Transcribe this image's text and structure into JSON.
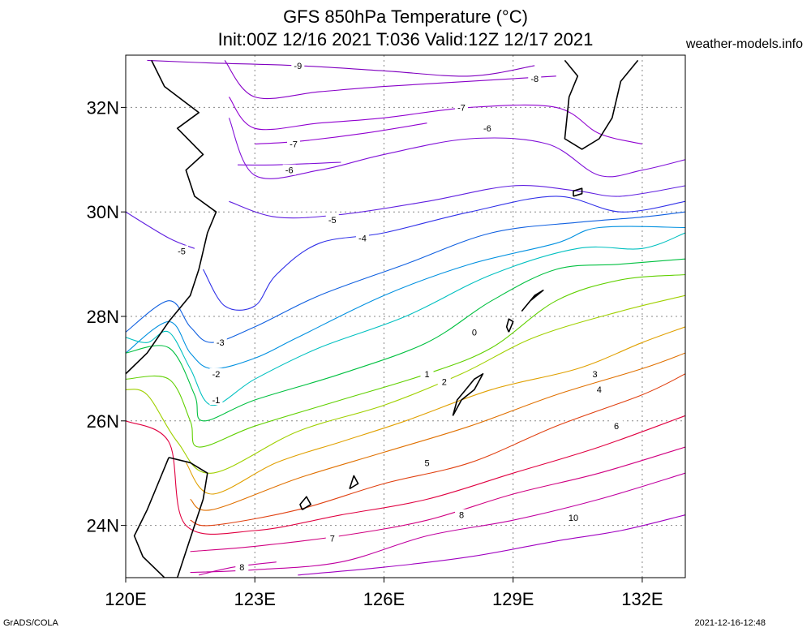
{
  "title_line1": "GFS 850hPa Temperature (°C)",
  "title_line2": "Init:00Z 12/16 2021 T:036 Valid:12Z 12/17 2021",
  "site": "weather-models.info",
  "footer_left": "GrADS/COLA",
  "footer_right": "2021-12-16-12:48",
  "axes": {
    "x_ticks": [
      {
        "lon": 120,
        "label": "120E"
      },
      {
        "lon": 123,
        "label": "123E"
      },
      {
        "lon": 126,
        "label": "126E"
      },
      {
        "lon": 129,
        "label": "129E"
      },
      {
        "lon": 132,
        "label": "132E"
      }
    ],
    "y_ticks": [
      {
        "lat": 24,
        "label": "24N"
      },
      {
        "lat": 26,
        "label": "26N"
      },
      {
        "lat": 28,
        "label": "28N"
      },
      {
        "lat": 30,
        "label": "30N"
      },
      {
        "lat": 32,
        "label": "32N"
      }
    ],
    "lon_range": [
      120,
      133
    ],
    "lat_range": [
      23,
      33
    ],
    "grid": "dotted"
  },
  "contour_colors": {
    "-9": "#8000c0",
    "-8": "#8800c8",
    "-7": "#9000d0",
    "-6": "#8010d8",
    "-5": "#6020e0",
    "-4": "#3030e8",
    "-3": "#1060e0",
    "-2": "#0090e0",
    "-1": "#00c0c0",
    "0": "#00c040",
    "1": "#60d000",
    "2": "#a0d000",
    "3": "#e0a000",
    "4": "#e07000",
    "5": "#e04010",
    "6": "#e00040",
    "7": "#d00080",
    "8": "#c000a0",
    "10": "#a000c0"
  },
  "contours": [
    {
      "level": -9,
      "label": "-9",
      "points": [
        [
          120.5,
          32.9
        ],
        [
          122,
          32.85
        ],
        [
          124,
          32.8
        ],
        [
          126,
          32.7
        ],
        [
          128,
          32.6
        ],
        [
          129.5,
          32.8
        ]
      ],
      "label_at": [
        124,
        32.8
      ]
    },
    {
      "level": -8,
      "label": "-8",
      "points": [
        [
          122.3,
          32.9
        ],
        [
          123,
          32.2
        ],
        [
          124.5,
          32.3
        ],
        [
          126,
          32.4
        ],
        [
          128,
          32.5
        ],
        [
          130,
          32.6
        ]
      ],
      "label_at": [
        129.5,
        32.55
      ]
    },
    {
      "level": -7,
      "label": "-7",
      "points": [
        [
          122.4,
          32.2
        ],
        [
          123,
          31.6
        ],
        [
          124.5,
          31.7
        ],
        [
          126,
          31.8
        ],
        [
          128,
          32.0
        ],
        [
          130,
          32.0
        ],
        [
          131,
          31.5
        ],
        [
          132,
          31.3
        ]
      ],
      "label_at": [
        127.8,
        32.0
      ]
    },
    {
      "level": -7,
      "label": "-7",
      "points": [
        [
          123,
          31.3
        ],
        [
          124,
          31.35
        ],
        [
          125.5,
          31.5
        ],
        [
          127,
          31.7
        ]
      ],
      "label_at": [
        123.9,
        31.3
      ]
    },
    {
      "level": -6,
      "label": "-6",
      "points": [
        [
          122.4,
          31.8
        ],
        [
          123,
          30.7
        ],
        [
          124.5,
          30.8
        ],
        [
          126,
          31.1
        ],
        [
          128,
          31.4
        ],
        [
          129.8,
          31.3
        ],
        [
          131,
          30.7
        ],
        [
          132,
          30.8
        ],
        [
          133,
          31.0
        ]
      ],
      "label_at": [
        128.4,
        31.6
      ]
    },
    {
      "level": -6,
      "label": "-6",
      "points": [
        [
          122.6,
          30.9
        ],
        [
          123.5,
          30.9
        ],
        [
          125,
          30.95
        ]
      ],
      "label_at": [
        123.8,
        30.8
      ]
    },
    {
      "level": -5,
      "label": "-5",
      "points": [
        [
          122.4,
          30.2
        ],
        [
          123.5,
          29.9
        ],
        [
          125,
          29.95
        ],
        [
          127,
          30.2
        ],
        [
          129,
          30.5
        ],
        [
          130.5,
          30.4
        ],
        [
          131.5,
          30.3
        ],
        [
          133,
          30.5
        ]
      ],
      "label_at": [
        124.8,
        29.85
      ]
    },
    {
      "level": -5,
      "label": "-5",
      "points": [
        [
          120,
          30.0
        ],
        [
          121,
          29.5
        ],
        [
          121.6,
          29.3
        ]
      ],
      "label_at": [
        121.3,
        29.25
      ]
    },
    {
      "level": -4,
      "label": "-4",
      "points": [
        [
          121.8,
          28.9
        ],
        [
          122.3,
          28.2
        ],
        [
          123,
          28.2
        ],
        [
          123.5,
          28.8
        ],
        [
          124.5,
          29.4
        ],
        [
          126,
          29.6
        ],
        [
          128,
          30.0
        ],
        [
          130,
          30.3
        ],
        [
          131.5,
          30.0
        ],
        [
          133,
          30.2
        ]
      ],
      "label_at": [
        125.5,
        29.5
      ]
    },
    {
      "level": -3,
      "label": "-3",
      "points": [
        [
          120,
          27.7
        ],
        [
          121,
          28.3
        ],
        [
          121.5,
          27.8
        ],
        [
          122,
          27.5
        ],
        [
          123,
          27.8
        ],
        [
          124.5,
          28.4
        ],
        [
          126.5,
          29.0
        ],
        [
          128.5,
          29.6
        ],
        [
          130.5,
          29.8
        ],
        [
          132,
          29.9
        ],
        [
          133,
          30.0
        ]
      ],
      "label_at": [
        122.2,
        27.5
      ]
    },
    {
      "level": -2,
      "label": "-2",
      "points": [
        [
          120,
          27.3
        ],
        [
          121,
          27.9
        ],
        [
          121.5,
          27.3
        ],
        [
          122,
          27.0
        ],
        [
          123,
          27.2
        ],
        [
          124,
          27.6
        ],
        [
          126,
          28.4
        ],
        [
          128,
          29.0
        ],
        [
          130,
          29.4
        ],
        [
          131,
          29.7
        ],
        [
          133,
          29.7
        ]
      ],
      "label_at": [
        122.1,
        26.9
      ]
    },
    {
      "level": -1,
      "label": "-1",
      "points": [
        [
          120,
          27.6
        ],
        [
          120.5,
          27.5
        ],
        [
          121,
          27.7
        ],
        [
          121.5,
          27.0
        ],
        [
          122,
          26.3
        ],
        [
          123,
          26.8
        ],
        [
          124.5,
          27.4
        ],
        [
          126.5,
          28.0
        ],
        [
          128.5,
          28.8
        ],
        [
          130.5,
          29.3
        ],
        [
          132,
          29.3
        ],
        [
          133,
          29.6
        ]
      ],
      "label_at": [
        122.1,
        26.4
      ]
    },
    {
      "level": 0,
      "label": "0",
      "points": [
        [
          120,
          27.3
        ],
        [
          121,
          27.4
        ],
        [
          121.6,
          26.5
        ],
        [
          121.8,
          26.0
        ],
        [
          123,
          26.4
        ],
        [
          125,
          26.9
        ],
        [
          127,
          27.5
        ],
        [
          128.5,
          28.3
        ],
        [
          130,
          28.9
        ],
        [
          131.5,
          29.0
        ],
        [
          133,
          29.1
        ]
      ],
      "label_at": [
        128.1,
        27.7
      ]
    },
    {
      "level": 1,
      "label": "1",
      "points": [
        [
          120,
          26.8
        ],
        [
          121,
          26.8
        ],
        [
          121.5,
          26.0
        ],
        [
          121.7,
          25.5
        ],
        [
          123,
          25.9
        ],
        [
          125,
          26.4
        ],
        [
          127,
          26.9
        ],
        [
          128.5,
          27.4
        ],
        [
          130,
          28.3
        ],
        [
          131.5,
          28.7
        ],
        [
          133,
          28.8
        ]
      ],
      "label_at": [
        127.0,
        26.9
      ]
    },
    {
      "level": 2,
      "label": "2",
      "points": [
        [
          120,
          26.6
        ],
        [
          120.5,
          26.5
        ],
        [
          121.2,
          25.6
        ],
        [
          122,
          25.0
        ],
        [
          124,
          25.8
        ],
        [
          126,
          26.3
        ],
        [
          127.8,
          26.9
        ],
        [
          129.5,
          27.6
        ],
        [
          131.5,
          28.1
        ],
        [
          133,
          28.4
        ]
      ],
      "label_at": [
        127.4,
        26.75
      ]
    },
    {
      "level": 3,
      "label": "3",
      "points": [
        [
          121.4,
          25.2
        ],
        [
          122,
          24.6
        ],
        [
          123.5,
          25.2
        ],
        [
          125,
          25.6
        ],
        [
          126.5,
          26.0
        ],
        [
          128.5,
          26.6
        ],
        [
          130.5,
          27.0
        ],
        [
          132,
          27.5
        ],
        [
          133,
          27.8
        ]
      ],
      "label_at": [
        130.9,
        26.9
      ]
    },
    {
      "level": 4,
      "label": "4",
      "points": [
        [
          121.5,
          24.5
        ],
        [
          122,
          24.3
        ],
        [
          124,
          24.9
        ],
        [
          126,
          25.4
        ],
        [
          128,
          25.9
        ],
        [
          130,
          26.5
        ],
        [
          132,
          27.0
        ],
        [
          133,
          27.3
        ]
      ],
      "label_at": [
        131.0,
        26.6
      ]
    },
    {
      "level": 5,
      "label": "5",
      "points": [
        [
          121.5,
          24.1
        ],
        [
          122,
          24.0
        ],
        [
          124,
          24.3
        ],
        [
          126,
          24.8
        ],
        [
          128,
          25.2
        ],
        [
          130,
          25.9
        ],
        [
          132,
          26.5
        ],
        [
          133,
          26.9
        ]
      ],
      "label_at": [
        127.0,
        25.2
      ]
    },
    {
      "level": 6,
      "label": "6",
      "points": [
        [
          120,
          26.0
        ],
        [
          121,
          25.6
        ],
        [
          121.4,
          24.0
        ],
        [
          123,
          23.9
        ],
        [
          125,
          24.2
        ],
        [
          127,
          24.5
        ],
        [
          129,
          25.0
        ],
        [
          131,
          25.5
        ],
        [
          133,
          26.1
        ]
      ],
      "label_at": [
        131.4,
        25.9
      ]
    },
    {
      "level": 7,
      "label": "7",
      "points": [
        [
          121.5,
          23.5
        ],
        [
          123,
          23.6
        ],
        [
          125,
          23.8
        ],
        [
          127,
          24.1
        ],
        [
          129,
          24.6
        ],
        [
          131,
          25.0
        ],
        [
          133,
          25.5
        ]
      ],
      "label_at": [
        124.8,
        23.75
      ]
    },
    {
      "level": 8,
      "label": "8",
      "points": [
        [
          121.5,
          23.1
        ],
        [
          123,
          23.15
        ],
        [
          125,
          23.3
        ],
        [
          127,
          23.8
        ],
        [
          129,
          24.1
        ],
        [
          131,
          24.5
        ],
        [
          133,
          25.0
        ]
      ],
      "label_at": [
        127.8,
        24.2
      ]
    },
    {
      "level": 8,
      "label": "8",
      "points": [
        [
          121.7,
          23.05
        ],
        [
          122.5,
          23.2
        ],
        [
          123.5,
          23.3
        ]
      ],
      "label_at": [
        122.7,
        23.2
      ]
    },
    {
      "level": 10,
      "label": "10",
      "points": [
        [
          124,
          23.05
        ],
        [
          126,
          23.2
        ],
        [
          128,
          23.4
        ],
        [
          130,
          23.7
        ],
        [
          131.5,
          23.9
        ],
        [
          133,
          24.2
        ]
      ],
      "label_at": [
        130.4,
        24.15
      ]
    }
  ],
  "coastline": [
    {
      "name": "taiwan",
      "points": [
        [
          121.0,
          25.3
        ],
        [
          121.5,
          25.2
        ],
        [
          121.9,
          25.0
        ],
        [
          121.8,
          24.5
        ],
        [
          121.6,
          24.0
        ],
        [
          121.4,
          23.5
        ],
        [
          121.2,
          23.0
        ],
        [
          120.9,
          23.0
        ],
        [
          120.4,
          23.4
        ],
        [
          120.2,
          23.8
        ],
        [
          120.5,
          24.3
        ],
        [
          120.7,
          24.7
        ],
        [
          121.0,
          25.3
        ]
      ]
    },
    {
      "name": "china-coast",
      "points": [
        [
          120.0,
          26.9
        ],
        [
          120.5,
          27.3
        ],
        [
          121.0,
          27.9
        ],
        [
          121.5,
          28.4
        ],
        [
          121.7,
          28.9
        ],
        [
          121.9,
          29.6
        ],
        [
          122.1,
          30.0
        ],
        [
          121.6,
          30.3
        ],
        [
          121.4,
          30.8
        ],
        [
          121.8,
          31.1
        ],
        [
          121.2,
          31.6
        ],
        [
          121.7,
          31.9
        ],
        [
          120.9,
          32.4
        ],
        [
          120.6,
          32.9
        ]
      ]
    },
    {
      "name": "kyushu",
      "points": [
        [
          130.2,
          32.9
        ],
        [
          130.5,
          32.6
        ],
        [
          130.3,
          32.2
        ],
        [
          130.2,
          31.4
        ],
        [
          130.6,
          31.2
        ],
        [
          131.0,
          31.4
        ],
        [
          131.3,
          31.8
        ],
        [
          131.5,
          32.5
        ],
        [
          131.9,
          32.9
        ]
      ]
    },
    {
      "name": "okinawa",
      "points": [
        [
          127.6,
          26.1
        ],
        [
          127.8,
          26.4
        ],
        [
          128.1,
          26.6
        ],
        [
          128.3,
          26.9
        ],
        [
          128.1,
          26.8
        ],
        [
          127.9,
          26.6
        ],
        [
          127.7,
          26.4
        ],
        [
          127.6,
          26.1
        ]
      ]
    },
    {
      "name": "amami",
      "points": [
        [
          129.2,
          28.1
        ],
        [
          129.5,
          28.4
        ],
        [
          129.7,
          28.5
        ],
        [
          129.4,
          28.3
        ],
        [
          129.2,
          28.1
        ]
      ]
    },
    {
      "name": "yakushima",
      "points": [
        [
          130.4,
          30.3
        ],
        [
          130.6,
          30.35
        ],
        [
          130.6,
          30.45
        ],
        [
          130.4,
          30.4
        ],
        [
          130.4,
          30.3
        ]
      ]
    },
    {
      "name": "tokunoshima",
      "points": [
        [
          128.9,
          27.7
        ],
        [
          129.0,
          27.9
        ],
        [
          128.9,
          27.95
        ],
        [
          128.85,
          27.8
        ],
        [
          128.9,
          27.7
        ]
      ]
    },
    {
      "name": "miyako",
      "points": [
        [
          125.2,
          24.7
        ],
        [
          125.4,
          24.8
        ],
        [
          125.3,
          24.95
        ],
        [
          125.2,
          24.7
        ]
      ]
    },
    {
      "name": "ishigaki",
      "points": [
        [
          124.1,
          24.3
        ],
        [
          124.3,
          24.4
        ],
        [
          124.2,
          24.55
        ],
        [
          124.05,
          24.4
        ],
        [
          124.1,
          24.3
        ]
      ]
    }
  ]
}
